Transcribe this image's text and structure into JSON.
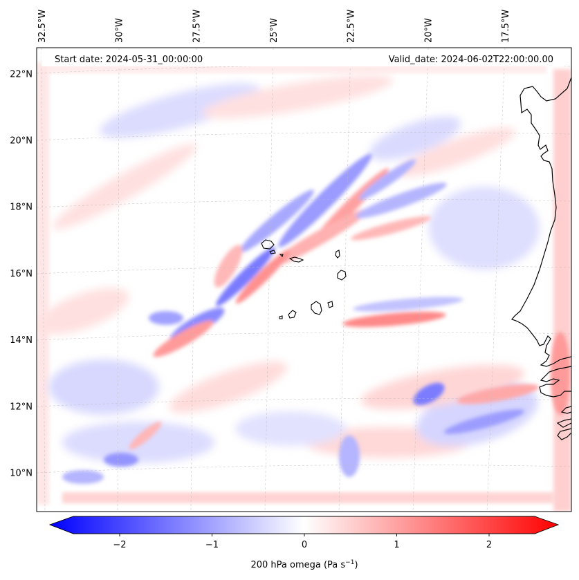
{
  "figure": {
    "start_date": "Start date: 2024-05-31_00:00:00",
    "valid_date": "Valid_date: 2024-06-02T22:00:00.00"
  },
  "chart_data": [
    {
      "type": "heatmap",
      "title": "",
      "xlabel": "",
      "ylabel": "",
      "projection": "map",
      "lon_ticks": [
        -32.5,
        -30,
        -27.5,
        -25,
        -22.5,
        -20,
        -17.5
      ],
      "lon_tick_labels": [
        "32.5°W",
        "30°W",
        "27.5°W",
        "25°W",
        "22.5°W",
        "20°W",
        "17.5°W"
      ],
      "lat_ticks": [
        10,
        12,
        14,
        16,
        18,
        20,
        22
      ],
      "lat_tick_labels": [
        "10°N",
        "12°N",
        "14°N",
        "16°N",
        "18°N",
        "20°N",
        "22°N"
      ],
      "lon_range": [
        -32.7,
        -15.4
      ],
      "lat_range": [
        8.9,
        22.8
      ],
      "grid": true,
      "features": [
        {
          "name": "Cape Verde islands",
          "outline": "black"
        },
        {
          "name": "West African coastline",
          "outline": "black"
        }
      ],
      "field_description": "Mostly near-zero omega with banded NE-SW oriented positive and negative anomalies; strongest couplets near 14-18N, 20-28W",
      "colors": {
        "negative": "#0000ff",
        "zero": "#ffffff",
        "positive": "#ff0000"
      }
    },
    {
      "type": "colorbar",
      "label": "200 hPa omega (Pa s",
      "label_sup": "−1",
      "label_end": ")",
      "ticks": [
        -2,
        -1,
        0,
        1,
        2
      ],
      "tick_labels": [
        "−2",
        "−1",
        "0",
        "1",
        "2"
      ],
      "range": [
        -2.6,
        2.6
      ],
      "extend": "both",
      "cmap": "bwr"
    }
  ]
}
